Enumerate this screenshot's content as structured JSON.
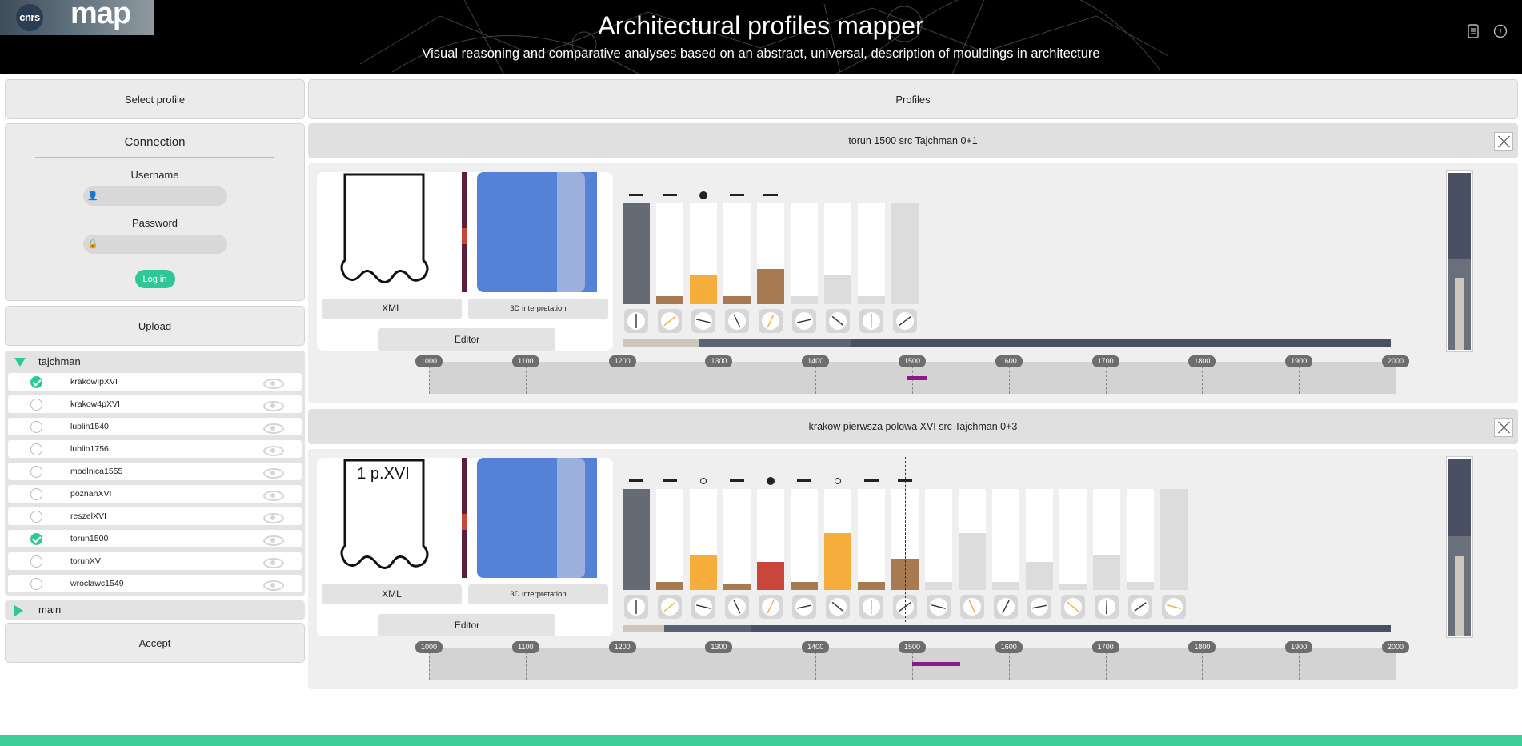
{
  "header": {
    "logo_cnrs": "cnrs",
    "logo_map": "map",
    "title": "Architectural profiles mapper",
    "subtitle": "Visual reasoning and comparative analyses based on an abstract, universal, description of mouldings in architecture",
    "icons": [
      "document-icon",
      "info-icon"
    ]
  },
  "sidebar": {
    "select_profile": "Select profile",
    "connection": {
      "title": "Connection",
      "username_label": "Username",
      "username_value": "",
      "password_label": "Password",
      "password_value": "",
      "login_label": "Log in"
    },
    "upload": "Upload",
    "groups": [
      {
        "name": "tajchman",
        "expanded": true,
        "profiles": [
          {
            "name": "krakowIpXVI",
            "checked": true
          },
          {
            "name": "krakow4pXVI",
            "checked": false
          },
          {
            "name": "lublin1540",
            "checked": false
          },
          {
            "name": "lublin1756",
            "checked": false
          },
          {
            "name": "modlnica1555",
            "checked": false
          },
          {
            "name": "poznanXVI",
            "checked": false
          },
          {
            "name": "reszelXVI",
            "checked": false
          },
          {
            "name": "torun1500",
            "checked": true
          },
          {
            "name": "torunXVI",
            "checked": false
          },
          {
            "name": "wroclawc1549",
            "checked": false
          }
        ]
      },
      {
        "name": "main",
        "expanded": false
      }
    ],
    "accept": "Accept"
  },
  "profiles_header": "Profiles",
  "colors": {
    "accent": "#2ec897",
    "brown": "#a87a52",
    "orange": "#f5ad3c",
    "red": "#c8463c",
    "dark": "#666a72",
    "light": "#dcdcdc",
    "timeline_mark": "#8a1a8a",
    "navy": "#4a5064"
  },
  "timeline_ticks": [
    "1000",
    "1100",
    "1200",
    "1300",
    "1400",
    "1500",
    "1600",
    "1700",
    "1800",
    "1900",
    "2000"
  ],
  "cards": [
    {
      "title": "torun 1500 src Tajchman 0+1",
      "image_label": "",
      "xml_label": "XML",
      "interp_label": "3D interpretation",
      "editor_label": "Editor",
      "symbols": [
        "dash",
        "dash",
        "dot",
        "dash",
        "dash"
      ],
      "bars": [
        {
          "level": 1.0,
          "color": "dark"
        },
        {
          "level": 0.08,
          "color": "brown"
        },
        {
          "level": 0.29,
          "color": "orange"
        },
        {
          "level": 0.08,
          "color": "brown"
        },
        {
          "level": 0.35,
          "color": "brown"
        },
        {
          "level": 0.08,
          "color": "light"
        },
        {
          "level": 0.29,
          "color": "light"
        },
        {
          "level": 0.08,
          "color": "light"
        },
        {
          "level": 1.0,
          "color": "light"
        }
      ],
      "timeline_range": [
        1495,
        1510
      ],
      "side_level": 0.5
    },
    {
      "title": "krakow pierwsza polowa XVI src Tajchman 0+3",
      "image_label": "1 p.XVI",
      "xml_label": "XML",
      "interp_label": "3D interpretation",
      "editor_label": "Editor",
      "symbols": [
        "dash",
        "dash",
        "ring",
        "dash",
        "dot",
        "dash",
        "ring",
        "dash",
        "dash"
      ],
      "bars": [
        {
          "level": 1.0,
          "color": "dark"
        },
        {
          "level": 0.08,
          "color": "brown"
        },
        {
          "level": 0.35,
          "color": "orange"
        },
        {
          "level": 0.06,
          "color": "brown"
        },
        {
          "level": 0.28,
          "color": "red"
        },
        {
          "level": 0.08,
          "color": "brown"
        },
        {
          "level": 0.56,
          "color": "orange"
        },
        {
          "level": 0.08,
          "color": "brown"
        },
        {
          "level": 0.31,
          "color": "brown"
        },
        {
          "level": 0.08,
          "color": "light"
        },
        {
          "level": 0.56,
          "color": "light"
        },
        {
          "level": 0.08,
          "color": "light"
        },
        {
          "level": 0.28,
          "color": "light"
        },
        {
          "level": 0.06,
          "color": "light"
        },
        {
          "level": 0.35,
          "color": "light"
        },
        {
          "level": 0.08,
          "color": "light"
        },
        {
          "level": 1.0,
          "color": "light"
        }
      ],
      "timeline_range": [
        1500,
        1550
      ],
      "side_level": 0.55
    }
  ]
}
